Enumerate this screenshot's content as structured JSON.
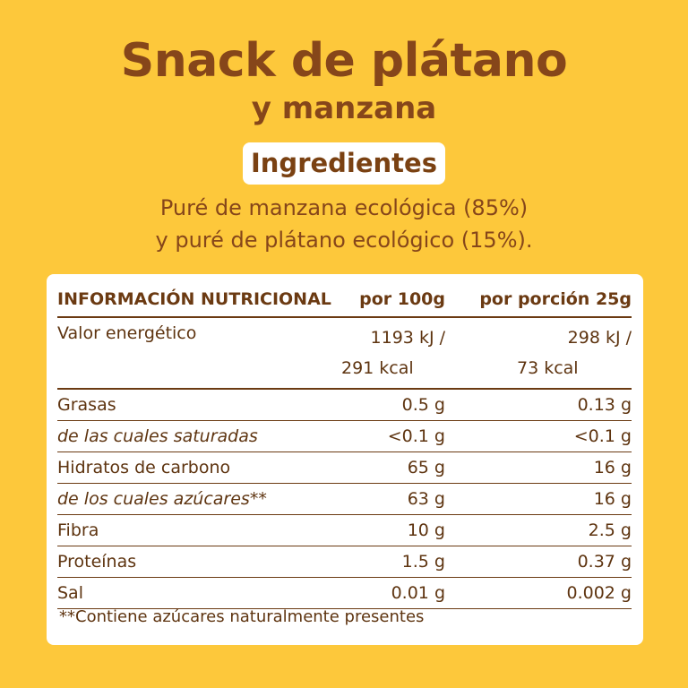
{
  "title": "Snack de plátano",
  "subtitle": "y manzana",
  "ingredients_label": "Ingredientes",
  "ingredients_line1": "Puré de manzana ecológica (85%)",
  "ingredients_line2": "y puré de plátano ecológico (15%).",
  "table": {
    "header": {
      "col1": "INFORMACIÓN NUTRICIONAL",
      "col2": "por 100g",
      "col3": "por porción 25g"
    },
    "energy": {
      "label": "Valor energético",
      "per100_kj": "1193 kJ /",
      "per100_kcal": "291 kcal",
      "portion_kj": "298 kJ /",
      "portion_kcal": "73 kcal"
    },
    "rows": [
      {
        "label": "Grasas",
        "per100": "0.5 g",
        "portion": "0.13 g"
      },
      {
        "label": "de las cuales saturadas",
        "per100": "<0.1 g",
        "portion": "<0.1 g"
      },
      {
        "label": "Hidratos de carbono",
        "per100": "65 g",
        "portion": "16 g"
      },
      {
        "label": "de los cuales azúcares**",
        "per100": "63 g",
        "portion": "16 g"
      },
      {
        "label": "Fibra",
        "per100": "10 g",
        "portion": "2.5 g"
      },
      {
        "label": "Proteínas",
        "per100": "1.5 g",
        "portion": "0.37 g"
      },
      {
        "label": "Sal",
        "per100": "0.01 g",
        "portion": "0.002 g"
      }
    ]
  },
  "footnote": "**Contiene azúcares naturalmente presentes",
  "colors": {
    "background": "#fdc83b",
    "brown": "#86461a",
    "panel": "#ffffff"
  }
}
